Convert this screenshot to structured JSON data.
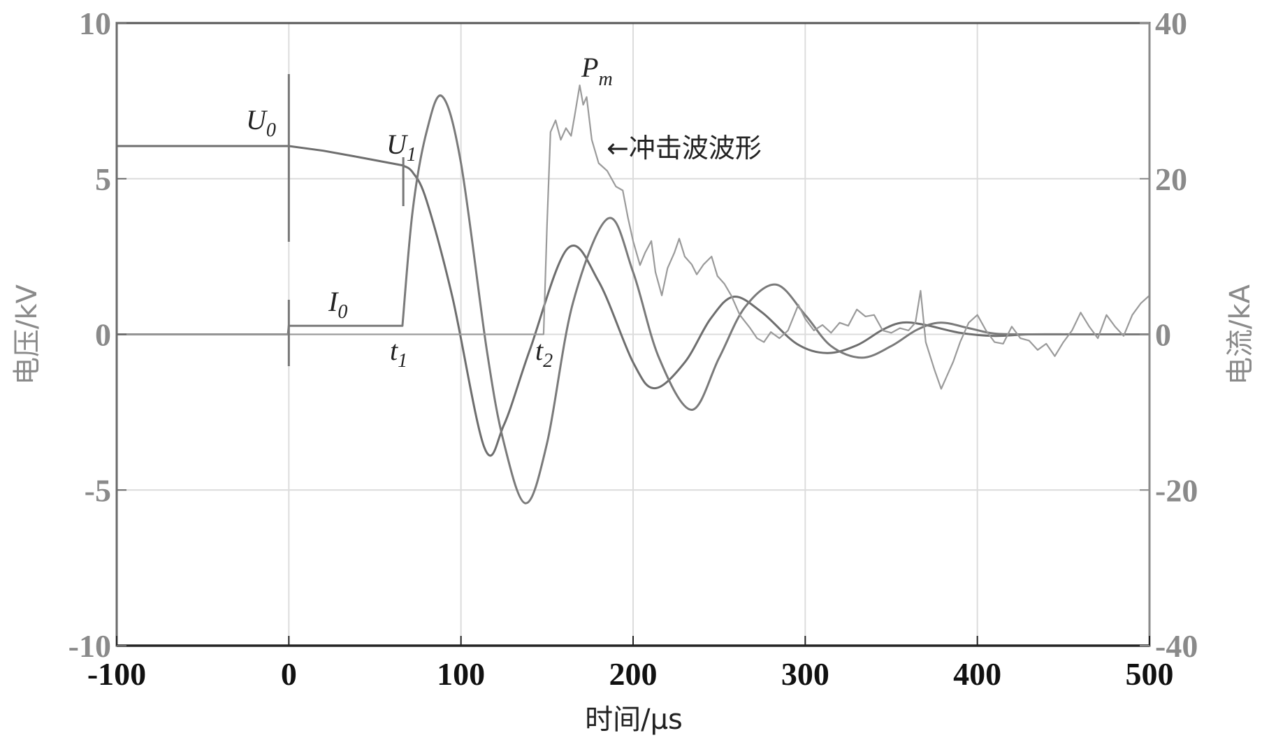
{
  "chart_data": {
    "type": "line",
    "title": "",
    "xlabel": "时间/μs",
    "ylabel_left": "电压/kV",
    "ylabel_right": "电流/kA",
    "xlim": [
      -100,
      500
    ],
    "ylim_left": [
      -10,
      10
    ],
    "ylim_right": [
      -40,
      40
    ],
    "grid": true,
    "x_ticks": [
      -100,
      0,
      100,
      200,
      300,
      400,
      500
    ],
    "y_left_ticks": [
      -10,
      -5,
      0,
      5,
      10
    ],
    "y_right_ticks": [
      -40,
      -20,
      0,
      20,
      40
    ],
    "legend": null,
    "series": [
      {
        "name": "电压 (voltage)",
        "axis": "left",
        "unit": "kV",
        "color": "#6e6e6e",
        "x": [
          -100,
          -50,
          0,
          20,
          40,
          66,
          72,
          80,
          95,
          113.7,
          125,
          140,
          162,
          180,
          200,
          212.6,
          230,
          245,
          258.5,
          275,
          295,
          312.6,
          330,
          345,
          356.6,
          370,
          390,
          410,
          430,
          460,
          500
        ],
        "y": [
          6.05,
          6.05,
          6.05,
          5.9,
          5.7,
          5.43,
          5.2,
          4.3,
          1.2,
          -3.65,
          -2.9,
          -0.5,
          2.76,
          1.7,
          -0.9,
          -1.73,
          -0.9,
          0.5,
          1.21,
          0.7,
          -0.3,
          -0.6,
          -0.35,
          0.15,
          0.38,
          0.3,
          0.05,
          -0.05,
          0.0,
          0.0,
          0.0
        ]
      },
      {
        "name": "电流 (current)",
        "axis": "right",
        "unit": "kA",
        "color": "#7a7a7a",
        "x": [
          -100,
          -50,
          -0.5,
          0,
          30,
          66,
          72,
          80,
          89,
          100,
          115,
          125,
          137.6,
          150,
          165,
          185.5,
          200,
          215,
          234,
          250,
          265,
          283,
          300,
          315,
          333,
          350,
          365,
          378.6,
          395,
          410,
          430,
          460,
          500
        ],
        "y": [
          0.0,
          0.0,
          0.0,
          1.1,
          1.1,
          1.1,
          16,
          26,
          30.6,
          22,
          -2,
          -14,
          -21.7,
          -14,
          4,
          14.9,
          8,
          -3,
          -9.7,
          -3,
          3.5,
          6.4,
          2.5,
          -1.5,
          -3,
          -1.5,
          0.6,
          1.5,
          0.8,
          0.1,
          0.0,
          0.0,
          0.0
        ]
      },
      {
        "name": "冲击波波形 (shock wave)",
        "axis": "right",
        "unit": "kA",
        "color": "#9a9a9a",
        "x": [
          -100,
          0,
          148,
          150,
          152,
          155,
          158,
          161,
          164,
          166,
          169,
          171,
          173,
          176,
          180,
          185,
          190,
          194,
          197,
          200,
          204,
          207,
          210.6,
          213,
          216.7,
          220,
          224,
          226.8,
          230,
          234,
          237,
          241,
          245.6,
          249,
          253,
          257,
          262,
          268,
          272,
          276,
          280,
          285,
          290,
          296,
          300,
          305,
          310,
          315,
          320,
          325,
          330,
          335,
          340,
          345,
          350,
          355,
          360,
          364,
          367,
          370,
          375,
          379,
          382,
          386,
          390,
          395,
          400,
          405,
          410,
          415,
          420,
          425,
          430,
          435,
          440,
          445,
          450,
          455,
          460,
          465,
          470,
          475,
          480,
          485,
          490,
          495,
          500
        ],
        "y": [
          0,
          0,
          0,
          14,
          26,
          27.5,
          25,
          26.5,
          25.5,
          28,
          32,
          29.5,
          30.5,
          25,
          22,
          21,
          19,
          18.5,
          15,
          12,
          8.9,
          10.5,
          12,
          8,
          5,
          8.5,
          10.5,
          12.3,
          10,
          9,
          7.7,
          9,
          10,
          7.5,
          6.5,
          5,
          2.5,
          0.8,
          -0.5,
          -1,
          0.3,
          -0.5,
          0.5,
          3.8,
          2,
          0.5,
          1.2,
          0.2,
          1.5,
          1.1,
          3.2,
          2.3,
          2.5,
          0.5,
          0.2,
          0.8,
          0.5,
          1.5,
          5.6,
          -1,
          -4.5,
          -7,
          -5.5,
          -3.5,
          -1,
          1.5,
          2.5,
          0.5,
          -1,
          -1.2,
          1,
          -0.5,
          -0.8,
          -2,
          -1.2,
          -2.8,
          -1,
          0.5,
          2.8,
          1,
          -0.5,
          2.5,
          1,
          -0.2,
          2.5,
          4,
          5
        ]
      }
    ],
    "annotations": [
      {
        "label": "U",
        "sub": "0",
        "x": -7,
        "y_kv": 6.05
      },
      {
        "label": "U",
        "sub": "1",
        "x": 66.5,
        "y_kv": 5.43
      },
      {
        "label": "I",
        "sub": "0",
        "x": 30,
        "y_ka": 1.1
      },
      {
        "label": "t",
        "sub": "1",
        "x": 66,
        "y_kv": 0
      },
      {
        "label": "t",
        "sub": "2",
        "x": 148.5,
        "y_kv": 0
      },
      {
        "label": "P",
        "sub": "m",
        "x": 169,
        "y_ka": 32
      }
    ],
    "arrow_annotation": "←冲击波波形"
  },
  "labels": {
    "xlabel": "时间/μs",
    "ylabel_left": "电压/kV",
    "ylabel_right": "电流/kA",
    "shock_wave_arrow": "←冲击波波形",
    "U0": "U",
    "U0_sub": "0",
    "U1": "U",
    "U1_sub": "1",
    "I0": "I",
    "I0_sub": "0",
    "t1": "t",
    "t1_sub": "1",
    "t2": "t",
    "t2_sub": "2",
    "Pm": "P",
    "Pm_sub": "m"
  },
  "colors": {
    "axis_box": "#555555",
    "grid": "#dcdcdc",
    "left_axis_text": "#8a8a8a",
    "right_axis_text": "#8a8a8a",
    "bottom_axis_text": "#111111"
  }
}
